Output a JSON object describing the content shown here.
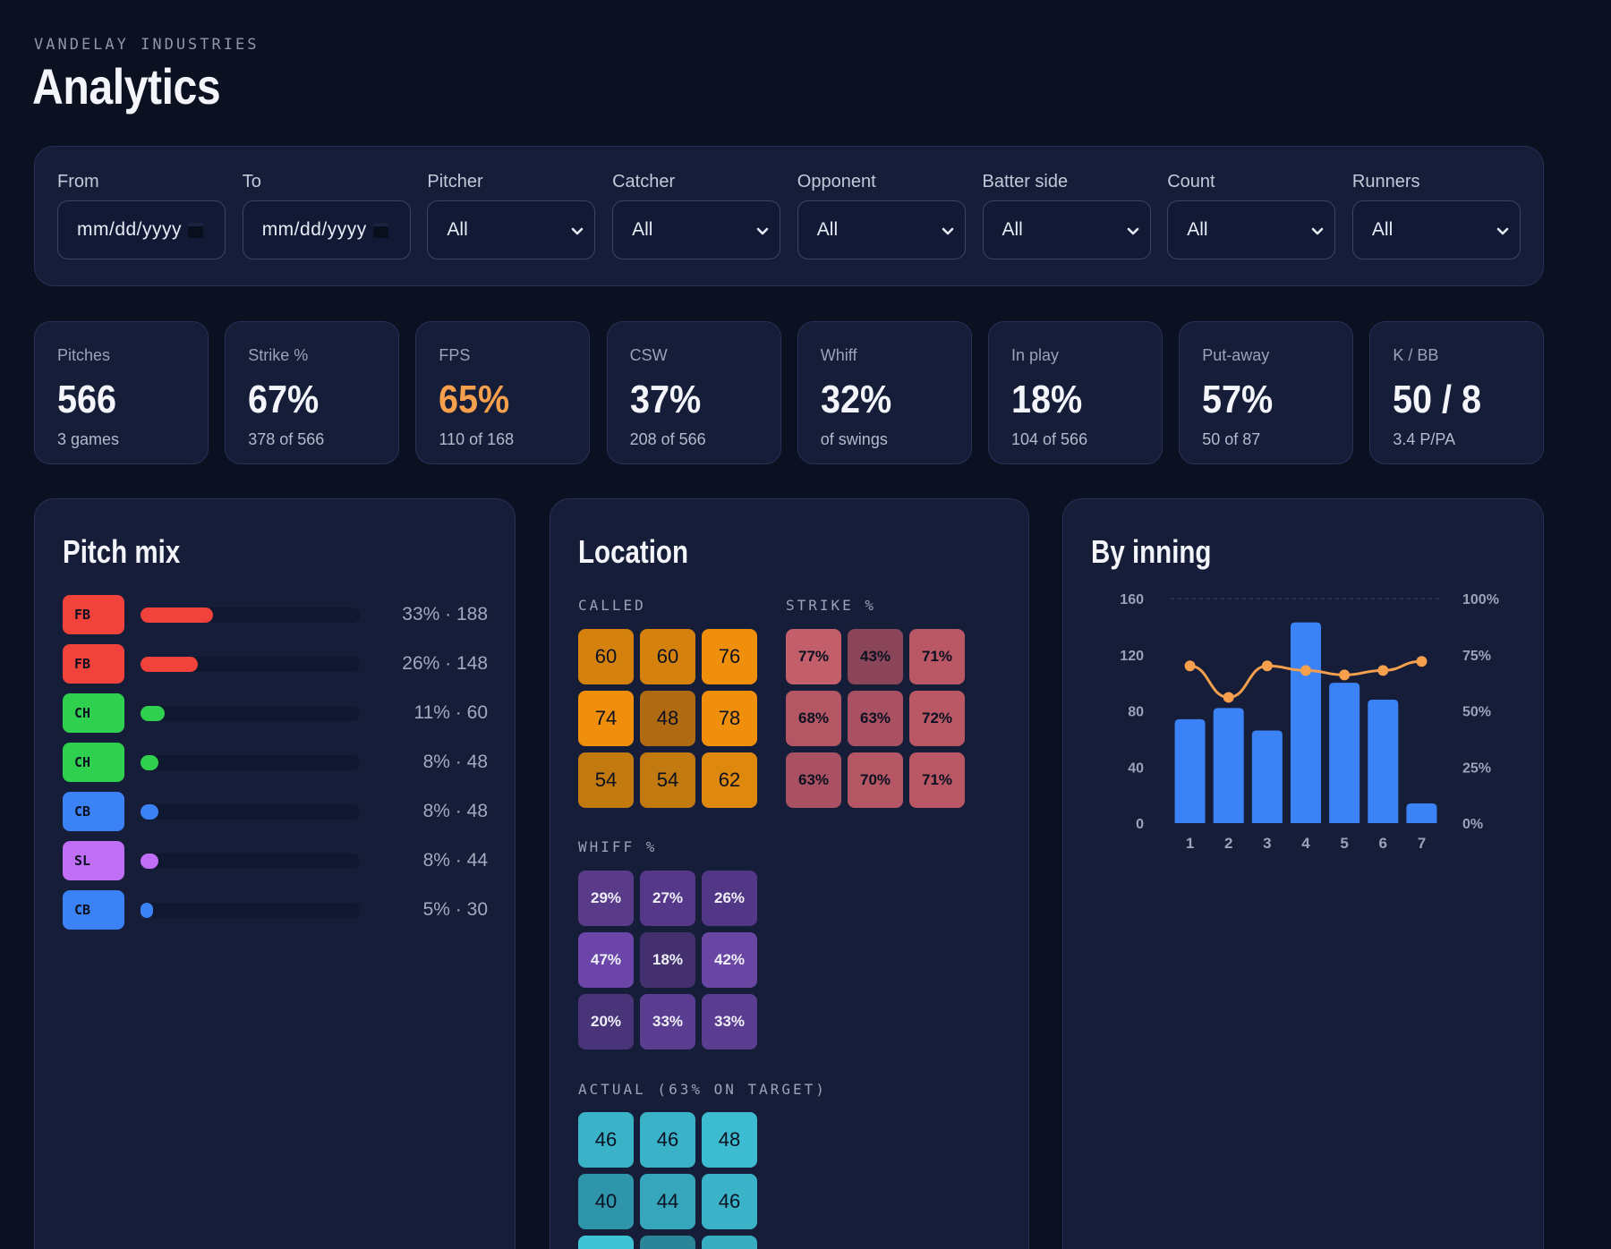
{
  "header": {
    "org": "VANDELAY INDUSTRIES",
    "title": "Analytics"
  },
  "filters": [
    {
      "label": "From",
      "value": "mm/dd/yyyy",
      "type": "date"
    },
    {
      "label": "To",
      "value": "mm/dd/yyyy",
      "type": "date"
    },
    {
      "label": "Pitcher",
      "value": "All",
      "type": "select"
    },
    {
      "label": "Catcher",
      "value": "All",
      "type": "select"
    },
    {
      "label": "Opponent",
      "value": "All",
      "type": "select"
    },
    {
      "label": "Batter side",
      "value": "All",
      "type": "select"
    },
    {
      "label": "Count",
      "value": "All",
      "type": "select"
    },
    {
      "label": "Runners",
      "value": "All",
      "type": "select"
    }
  ],
  "kpis": [
    {
      "label": "Pitches",
      "value": "566",
      "sub": "3 games",
      "accent": "#f3f5fa"
    },
    {
      "label": "Strike %",
      "value": "67%",
      "sub": "378 of 566",
      "accent": "#f3f5fa"
    },
    {
      "label": "FPS",
      "value": "65%",
      "sub": "110 of 168",
      "accent": "#f6a04d"
    },
    {
      "label": "CSW",
      "value": "37%",
      "sub": "208 of 566",
      "accent": "#f3f5fa"
    },
    {
      "label": "Whiff",
      "value": "32%",
      "sub": "of swings",
      "accent": "#f3f5fa"
    },
    {
      "label": "In play",
      "value": "18%",
      "sub": "104 of 566",
      "accent": "#f3f5fa"
    },
    {
      "label": "Put-away",
      "value": "57%",
      "sub": "50 of 87",
      "accent": "#f3f5fa"
    },
    {
      "label": "K / BB",
      "value": "50 / 8",
      "sub": "3.4 P/PA",
      "accent": "#f3f5fa"
    }
  ],
  "pitch_mix": {
    "title": "Pitch mix",
    "rows": [
      {
        "tag": "FB",
        "color": "#f2423c",
        "share": 0.33,
        "text": "33% · 188"
      },
      {
        "tag": "FB",
        "color": "#f2423c",
        "share": 0.26,
        "text": "26% · 148"
      },
      {
        "tag": "CH",
        "color": "#2fd04e",
        "share": 0.11,
        "text": "11% · 60"
      },
      {
        "tag": "CH",
        "color": "#2fd04e",
        "share": 0.08,
        "text": "8% · 48"
      },
      {
        "tag": "CB",
        "color": "#3b82f6",
        "share": 0.08,
        "text": "8% · 48"
      },
      {
        "tag": "SL",
        "color": "#c06ef5",
        "share": 0.08,
        "text": "8% · 44"
      },
      {
        "tag": "CB",
        "color": "#3b82f6",
        "share": 0.05,
        "text": "5% · 30"
      }
    ]
  },
  "location": {
    "title": "Location",
    "called": {
      "label": "CALLED",
      "values": [
        "60",
        "60",
        "76",
        "74",
        "48",
        "78",
        "54",
        "54",
        "62"
      ]
    },
    "strike": {
      "label": "STRIKE %",
      "values": [
        "77%",
        "43%",
        "71%",
        "68%",
        "63%",
        "72%",
        "63%",
        "70%",
        "71%"
      ]
    },
    "whiff": {
      "label": "WHIFF %",
      "values": [
        "29%",
        "27%",
        "26%",
        "47%",
        "18%",
        "42%",
        "20%",
        "33%",
        "33%"
      ]
    },
    "actual": {
      "label": "ACTUAL (63% ON TARGET)",
      "values": [
        "46",
        "46",
        "48",
        "40",
        "44",
        "46",
        "",
        "",
        ""
      ]
    }
  },
  "by_inning": {
    "title": "By inning",
    "chart_data": {
      "type": "bar",
      "categories": [
        "1",
        "2",
        "3",
        "4",
        "5",
        "6",
        "7"
      ],
      "series": [
        {
          "values": [
            74,
            82,
            66,
            143,
            100,
            88,
            14
          ],
          "color": "#3b82f6",
          "axis": "left"
        },
        {
          "values": [
            70,
            56,
            70,
            68,
            66,
            68,
            72
          ],
          "color": "#f6a04d",
          "axis": "right",
          "kind": "line"
        }
      ],
      "ylim_left": [
        0,
        160
      ],
      "yticks_left": [
        "0",
        "40",
        "80",
        "120",
        "160"
      ],
      "ylim_right": [
        0,
        100
      ],
      "yticks_right": [
        "0%",
        "25%",
        "50%",
        "75%",
        "100%"
      ]
    }
  }
}
